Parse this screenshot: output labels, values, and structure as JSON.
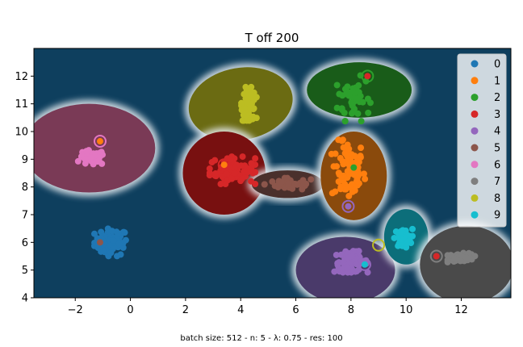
{
  "chart_data": {
    "type": "scatter",
    "title": "T off 200",
    "footer": "batch size: 512 - n: 5 - λ: 0.75 - res: 100",
    "xlim": [
      -3.5,
      13.8
    ],
    "ylim": [
      4,
      13
    ],
    "xticks": [
      -2,
      0,
      2,
      4,
      6,
      8,
      10,
      12
    ],
    "yticks": [
      4,
      5,
      6,
      7,
      8,
      9,
      10,
      11,
      12
    ],
    "legend_position": "top-right",
    "background_color": "#0e3f5e",
    "series": [
      {
        "name": "0",
        "color": "#1f77b4",
        "cx": -0.7,
        "cy": 6.0,
        "sx": 0.55,
        "sy": 0.45,
        "n": 70,
        "region_color": null
      },
      {
        "name": "1",
        "color": "#ff7f0e",
        "cx": 7.9,
        "cy": 8.6,
        "sx": 0.55,
        "sy": 1.0,
        "n": 80,
        "region_color": "#8a4a0c"
      },
      {
        "name": "2",
        "color": "#2ca02c",
        "cx": 8.1,
        "cy": 11.2,
        "sx": 0.55,
        "sy": 0.75,
        "n": 45,
        "region_color": "#195c19"
      },
      {
        "name": "3",
        "color": "#d62728",
        "cx": 3.7,
        "cy": 8.6,
        "sx": 0.75,
        "sy": 0.45,
        "n": 80,
        "region_color": "#781010"
      },
      {
        "name": "4",
        "color": "#9467bd",
        "cx": 8.0,
        "cy": 5.3,
        "sx": 0.55,
        "sy": 0.35,
        "n": 70,
        "region_color": "#4a3a6a"
      },
      {
        "name": "5",
        "color": "#8c564b",
        "cx": 5.8,
        "cy": 8.1,
        "sx": 0.85,
        "sy": 0.2,
        "n": 40,
        "region_color": "#4a302c"
      },
      {
        "name": "6",
        "color": "#e377c2",
        "cx": -1.4,
        "cy": 9.05,
        "sx": 0.45,
        "sy": 0.25,
        "n": 40,
        "region_color": "#7a3a56"
      },
      {
        "name": "7",
        "color": "#7f7f7f",
        "cx": 12.0,
        "cy": 5.45,
        "sx": 0.45,
        "sy": 0.15,
        "n": 55,
        "region_color": "#4a4a4a"
      },
      {
        "name": "8",
        "color": "#bcbd22",
        "cx": 4.3,
        "cy": 11.0,
        "sx": 0.25,
        "sy": 0.55,
        "n": 60,
        "region_color": "#6b6b12"
      },
      {
        "name": "9",
        "color": "#17becf",
        "cx": 9.9,
        "cy": 6.15,
        "sx": 0.3,
        "sy": 0.3,
        "n": 55,
        "region_color": "#0c6e7a"
      }
    ],
    "regions": [
      {
        "series": "6",
        "cx": -1.5,
        "cy": 9.4,
        "rx": 2.4,
        "ry": 1.6,
        "rot": 0
      },
      {
        "series": "8",
        "cx": 4.0,
        "cy": 11.0,
        "rx": 1.9,
        "ry": 1.3,
        "rot": -10
      },
      {
        "series": "2",
        "cx": 8.3,
        "cy": 11.5,
        "rx": 1.9,
        "ry": 1.0,
        "rot": 0
      },
      {
        "series": "3",
        "cx": 3.4,
        "cy": 8.5,
        "rx": 1.5,
        "ry": 1.5,
        "rot": 0
      },
      {
        "series": "5",
        "cx": 5.7,
        "cy": 8.1,
        "rx": 1.3,
        "ry": 0.5,
        "rot": 0
      },
      {
        "series": "1",
        "cx": 8.1,
        "cy": 8.4,
        "rx": 1.2,
        "ry": 1.6,
        "rot": 0
      },
      {
        "series": "4",
        "cx": 7.8,
        "cy": 5.0,
        "rx": 1.8,
        "ry": 1.2,
        "rot": 0
      },
      {
        "series": "9",
        "cx": 10.0,
        "cy": 6.2,
        "rx": 0.8,
        "ry": 1.0,
        "rot": 0
      },
      {
        "series": "7",
        "cx": 12.2,
        "cy": 5.2,
        "rx": 1.7,
        "ry": 1.4,
        "rot": 0
      }
    ],
    "prototypes": [
      {
        "x": -1.1,
        "y": 9.65,
        "series": "6",
        "fill": "#ff7f0e"
      },
      {
        "x": -1.1,
        "y": 6.0,
        "series": "0",
        "fill": "#8c564b"
      },
      {
        "x": 3.4,
        "y": 8.8,
        "series": "3",
        "fill": "#ff7f0e"
      },
      {
        "x": 8.6,
        "y": 12.0,
        "series": "2",
        "fill": "#d62728"
      },
      {
        "x": 8.1,
        "y": 8.7,
        "series": "1",
        "fill": "#2ca02c"
      },
      {
        "x": 7.9,
        "y": 7.3,
        "series": "4",
        "fill": "#9467bd"
      },
      {
        "x": 8.5,
        "y": 5.2,
        "series": "4",
        "fill": "#17becf"
      },
      {
        "x": 9.0,
        "y": 5.9,
        "series": "8",
        "fill": null
      },
      {
        "x": 11.1,
        "y": 5.5,
        "series": "7",
        "fill": "#d62728"
      }
    ]
  }
}
